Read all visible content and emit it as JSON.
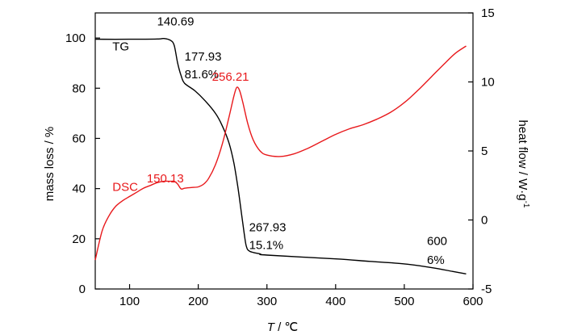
{
  "chart_data": {
    "type": "line",
    "xlabel_italic": "T",
    "xlabel_unit": " / ℃",
    "ylabel_left": "mass loss / %",
    "ylabel_right_main": "heat flow / W·g",
    "ylabel_right_sup": "-1",
    "xlim": [
      50,
      600
    ],
    "ylim_left": [
      0,
      110
    ],
    "ylim_right": [
      -5,
      15
    ],
    "x_ticks": [
      100,
      200,
      300,
      400,
      500,
      600
    ],
    "y_left_ticks": [
      0,
      20,
      40,
      60,
      80,
      100
    ],
    "y_right_ticks": [
      -5,
      0,
      5,
      10,
      15
    ],
    "colors": {
      "TG": "#000000",
      "DSC": "#e8191c"
    },
    "series": [
      {
        "name": "TG",
        "axis": "left",
        "points": [
          [
            50,
            99.5
          ],
          [
            100,
            99.5
          ],
          [
            140,
            99.6
          ],
          [
            150,
            99.8
          ],
          [
            160,
            99.0
          ],
          [
            165,
            97.0
          ],
          [
            170,
            90.0
          ],
          [
            175,
            85.0
          ],
          [
            180,
            82.0
          ],
          [
            195,
            79.0
          ],
          [
            210,
            75.0
          ],
          [
            225,
            70.0
          ],
          [
            235,
            65.0
          ],
          [
            245,
            58.0
          ],
          [
            252,
            50.0
          ],
          [
            258,
            40.0
          ],
          [
            263,
            30.0
          ],
          [
            267,
            22.0
          ],
          [
            270,
            17.0
          ],
          [
            275,
            15.0
          ],
          [
            290,
            14.0
          ],
          [
            300,
            13.5
          ],
          [
            400,
            12.0
          ],
          [
            450,
            11.0
          ],
          [
            500,
            10.0
          ],
          [
            540,
            8.5
          ],
          [
            570,
            7.0
          ],
          [
            590,
            6.0
          ]
        ]
      },
      {
        "name": "DSC",
        "axis": "right",
        "points": [
          [
            50,
            -2.9
          ],
          [
            60,
            -0.8
          ],
          [
            70,
            0.3
          ],
          [
            80,
            1.0
          ],
          [
            90,
            1.4
          ],
          [
            100,
            1.7
          ],
          [
            110,
            2.0
          ],
          [
            120,
            2.3
          ],
          [
            130,
            2.5
          ],
          [
            140,
            2.7
          ],
          [
            150,
            2.8
          ],
          [
            160,
            2.8
          ],
          [
            165,
            2.8
          ],
          [
            170,
            2.6
          ],
          [
            175,
            2.25
          ],
          [
            180,
            2.3
          ],
          [
            190,
            2.35
          ],
          [
            200,
            2.4
          ],
          [
            208,
            2.6
          ],
          [
            215,
            3.0
          ],
          [
            225,
            4.0
          ],
          [
            235,
            5.5
          ],
          [
            245,
            7.5
          ],
          [
            252,
            9.0
          ],
          [
            256,
            9.6
          ],
          [
            260,
            9.4
          ],
          [
            265,
            8.5
          ],
          [
            272,
            7.0
          ],
          [
            280,
            5.8
          ],
          [
            290,
            5.0
          ],
          [
            300,
            4.7
          ],
          [
            320,
            4.6
          ],
          [
            340,
            4.8
          ],
          [
            360,
            5.2
          ],
          [
            380,
            5.7
          ],
          [
            400,
            6.2
          ],
          [
            420,
            6.6
          ],
          [
            440,
            6.9
          ],
          [
            460,
            7.3
          ],
          [
            480,
            7.8
          ],
          [
            500,
            8.5
          ],
          [
            520,
            9.4
          ],
          [
            540,
            10.4
          ],
          [
            560,
            11.4
          ],
          [
            575,
            12.1
          ],
          [
            590,
            12.6
          ]
        ]
      }
    ],
    "annotations": [
      {
        "text": "140.69",
        "x": 140,
        "y": 105,
        "axis": "left",
        "series": "TG"
      },
      {
        "text": "TG",
        "x": 75,
        "y": 95,
        "axis": "left",
        "series": "TG"
      },
      {
        "text": "177.93",
        "x": 180,
        "y": 91,
        "axis": "left",
        "series": "TG"
      },
      {
        "text": "81.6%",
        "x": 180,
        "y": 84,
        "axis": "left",
        "series": "TG"
      },
      {
        "text": "256.21",
        "x": 220,
        "y": 83,
        "axis": "left",
        "series": "DSC"
      },
      {
        "text": "DSC",
        "x": 75,
        "y": 39,
        "axis": "left",
        "series": "DSC"
      },
      {
        "text": "150.13",
        "x": 125,
        "y": 42.5,
        "axis": "left",
        "series": "DSC"
      },
      {
        "text": "267.93",
        "x": 274,
        "y": 23,
        "axis": "left",
        "series": "TG"
      },
      {
        "text": "15.1%",
        "x": 274,
        "y": 16,
        "axis": "left",
        "series": "TG"
      },
      {
        "text": "600",
        "x": 533,
        "y": 17.5,
        "axis": "left",
        "series": "TG"
      },
      {
        "text": "6%",
        "x": 533,
        "y": 10,
        "axis": "left",
        "series": "TG"
      }
    ]
  }
}
